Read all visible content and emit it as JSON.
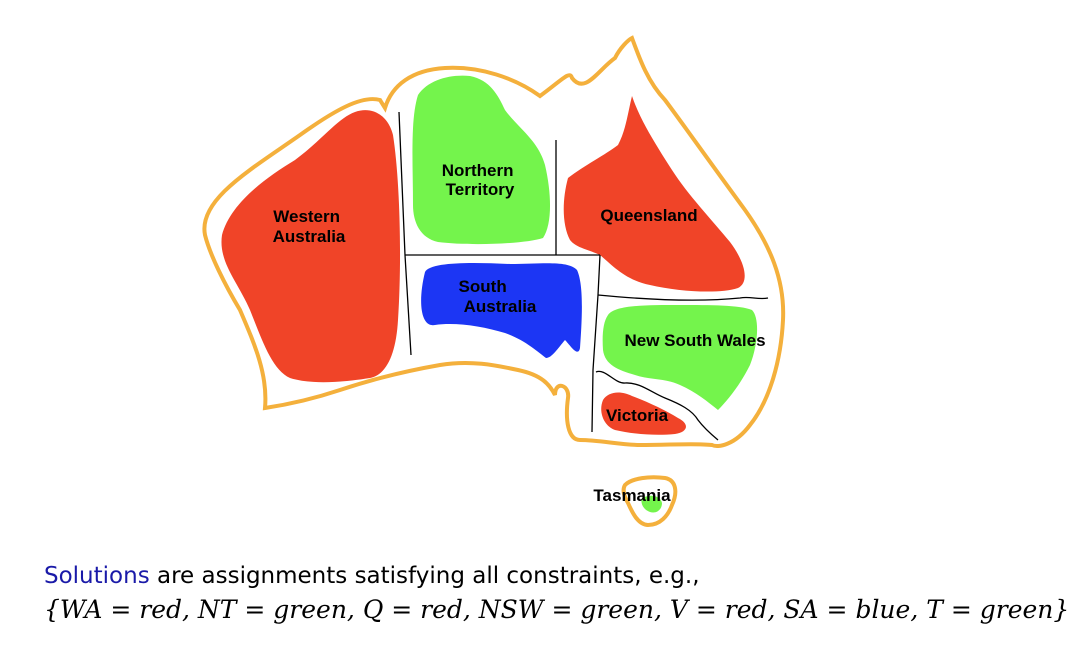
{
  "regions": [
    {
      "id": "wa",
      "label_lines": [
        "Western",
        "Australia"
      ],
      "color": "red"
    },
    {
      "id": "nt",
      "label_lines": [
        "Northern",
        "Territory"
      ],
      "color": "green"
    },
    {
      "id": "q",
      "label_lines": [
        "Queensland"
      ],
      "color": "red"
    },
    {
      "id": "sa",
      "label_lines": [
        "South",
        "Australia"
      ],
      "color": "blue"
    },
    {
      "id": "nsw",
      "label_lines": [
        "New South Wales"
      ],
      "color": "green"
    },
    {
      "id": "v",
      "label_lines": [
        "Victoria"
      ],
      "color": "red"
    },
    {
      "id": "t",
      "label_lines": [
        "Tasmania"
      ],
      "color": "green"
    }
  ],
  "colors": {
    "red": "#f04428",
    "green": "#74f44c",
    "blue": "#1c36f4",
    "outline": "#f4b03c",
    "border": "#000000",
    "caption_keyword": "#1a1aa8"
  },
  "caption": {
    "keyword": "Solutions",
    "rest": " are assignments satisfying all constraints, e.g.,",
    "assignment": "{WA = red, NT = green, Q = red, NSW = green, V = red, SA = blue, T = green}"
  }
}
